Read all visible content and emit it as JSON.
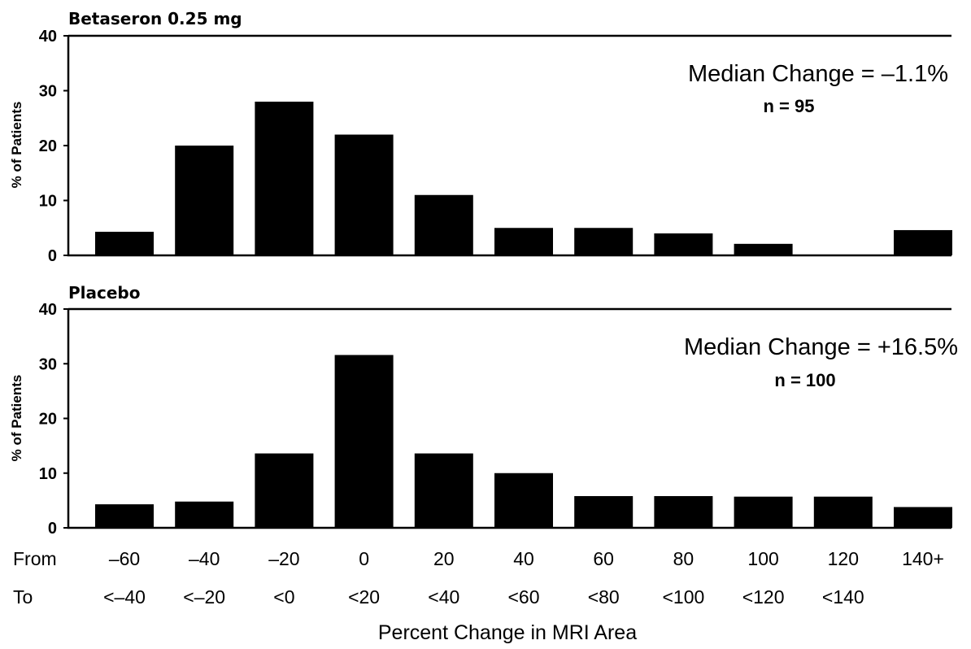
{
  "chart_data": [
    {
      "type": "bar",
      "title": "Betaseron 0.25 mg",
      "ylabel": "% of Patients",
      "ylim": [
        0,
        40
      ],
      "yticks": [
        0,
        10,
        20,
        30,
        40
      ],
      "annotation": "Median Change = –1.1%",
      "n_label": "n = 95",
      "categories": [
        "–60 to <–40",
        "–40 to <–20",
        "–20 to <0",
        "0 to <20",
        "20 to <40",
        "40 to <60",
        "60 to <80",
        "80 to <100",
        "100 to <120",
        "120 to <140",
        "140+"
      ],
      "values": [
        4.3,
        20,
        28,
        22,
        11,
        5,
        5,
        4,
        2.1,
        0,
        4.6
      ]
    },
    {
      "type": "bar",
      "title": "Placebo",
      "ylabel": "% of Patients",
      "ylim": [
        0,
        40
      ],
      "yticks": [
        0,
        10,
        20,
        30,
        40
      ],
      "annotation": "Median Change = +16.5%",
      "n_label": "n = 100",
      "categories": [
        "–60 to <–40",
        "–40 to <–20",
        "–20 to <0",
        "0 to <20",
        "20 to <40",
        "40 to <60",
        "60 to <80",
        "80 to <100",
        "100 to <120",
        "120 to <140",
        "140+"
      ],
      "values": [
        4.3,
        4.8,
        13.6,
        31.6,
        13.6,
        10,
        5.8,
        5.8,
        5.7,
        5.7,
        3.8
      ]
    }
  ],
  "x_axis": {
    "from_label": "From",
    "to_label": "To",
    "from_values": [
      "–60",
      "–40",
      "–20",
      "0",
      "20",
      "40",
      "60",
      "80",
      "100",
      "120",
      "140+"
    ],
    "to_values": [
      "<–40",
      "<–20",
      "<0",
      "<20",
      "<40",
      "<60",
      "<80",
      "<100",
      "<120",
      "<140",
      ""
    ],
    "xlabel": "Percent Change in MRI Area"
  }
}
